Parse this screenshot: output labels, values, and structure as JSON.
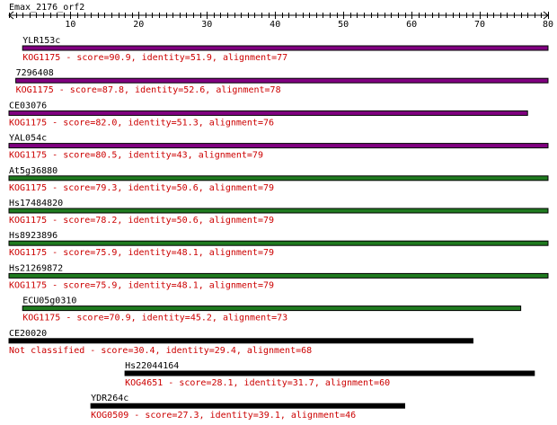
{
  "query": {
    "name": "Emax_2176_orf2",
    "length": 80
  },
  "axis": {
    "min": 1,
    "max": 80,
    "major_ticks": [
      10,
      20,
      30,
      40,
      50,
      60,
      70,
      80
    ]
  },
  "colors": {
    "purple": "#800080",
    "green": "#1f7a1f",
    "black": "#000000",
    "label": "#000000",
    "detail": "#cc0000"
  },
  "hits": [
    {
      "id": "YLR153c",
      "start": 3,
      "end": 80,
      "color": "purple",
      "detail": "KOG1175 - score=90.9, identity=51.9, alignment=77"
    },
    {
      "id": "7296408",
      "start": 2,
      "end": 80,
      "color": "purple",
      "detail": "KOG1175 - score=87.8, identity=52.6, alignment=78"
    },
    {
      "id": "CE03076",
      "start": 1,
      "end": 77,
      "color": "purple",
      "detail": "KOG1175 - score=82.0, identity=51.3, alignment=76"
    },
    {
      "id": "YAL054c",
      "start": 1,
      "end": 80,
      "color": "purple",
      "detail": "KOG1175 - score=80.5, identity=43, alignment=79"
    },
    {
      "id": "At5g36880",
      "start": 1,
      "end": 80,
      "color": "green",
      "detail": "KOG1175 - score=79.3, identity=50.6, alignment=79"
    },
    {
      "id": "Hs17484820",
      "start": 1,
      "end": 80,
      "color": "green",
      "detail": "KOG1175 - score=78.2, identity=50.6, alignment=79"
    },
    {
      "id": "Hs8923896",
      "start": 1,
      "end": 80,
      "color": "green",
      "detail": "KOG1175 - score=75.9, identity=48.1, alignment=79"
    },
    {
      "id": "Hs21269872",
      "start": 1,
      "end": 80,
      "color": "green",
      "detail": "KOG1175 - score=75.9, identity=48.1, alignment=79"
    },
    {
      "id": "ECU05g0310",
      "start": 3,
      "end": 76,
      "color": "green",
      "detail": "KOG1175 - score=70.9, identity=45.2, alignment=73"
    },
    {
      "id": "CE20020",
      "start": 1,
      "end": 69,
      "color": "black",
      "detail": "Not classified - score=30.4, identity=29.4, alignment=68"
    },
    {
      "id": "Hs22044164",
      "start": 18,
      "end": 78,
      "color": "black",
      "detail": "KOG4651 - score=28.1, identity=31.7, alignment=60"
    },
    {
      "id": "YDR264c",
      "start": 13,
      "end": 59,
      "color": "black",
      "detail": "KOG0509 - score=27.3, identity=39.1, alignment=46"
    }
  ]
}
